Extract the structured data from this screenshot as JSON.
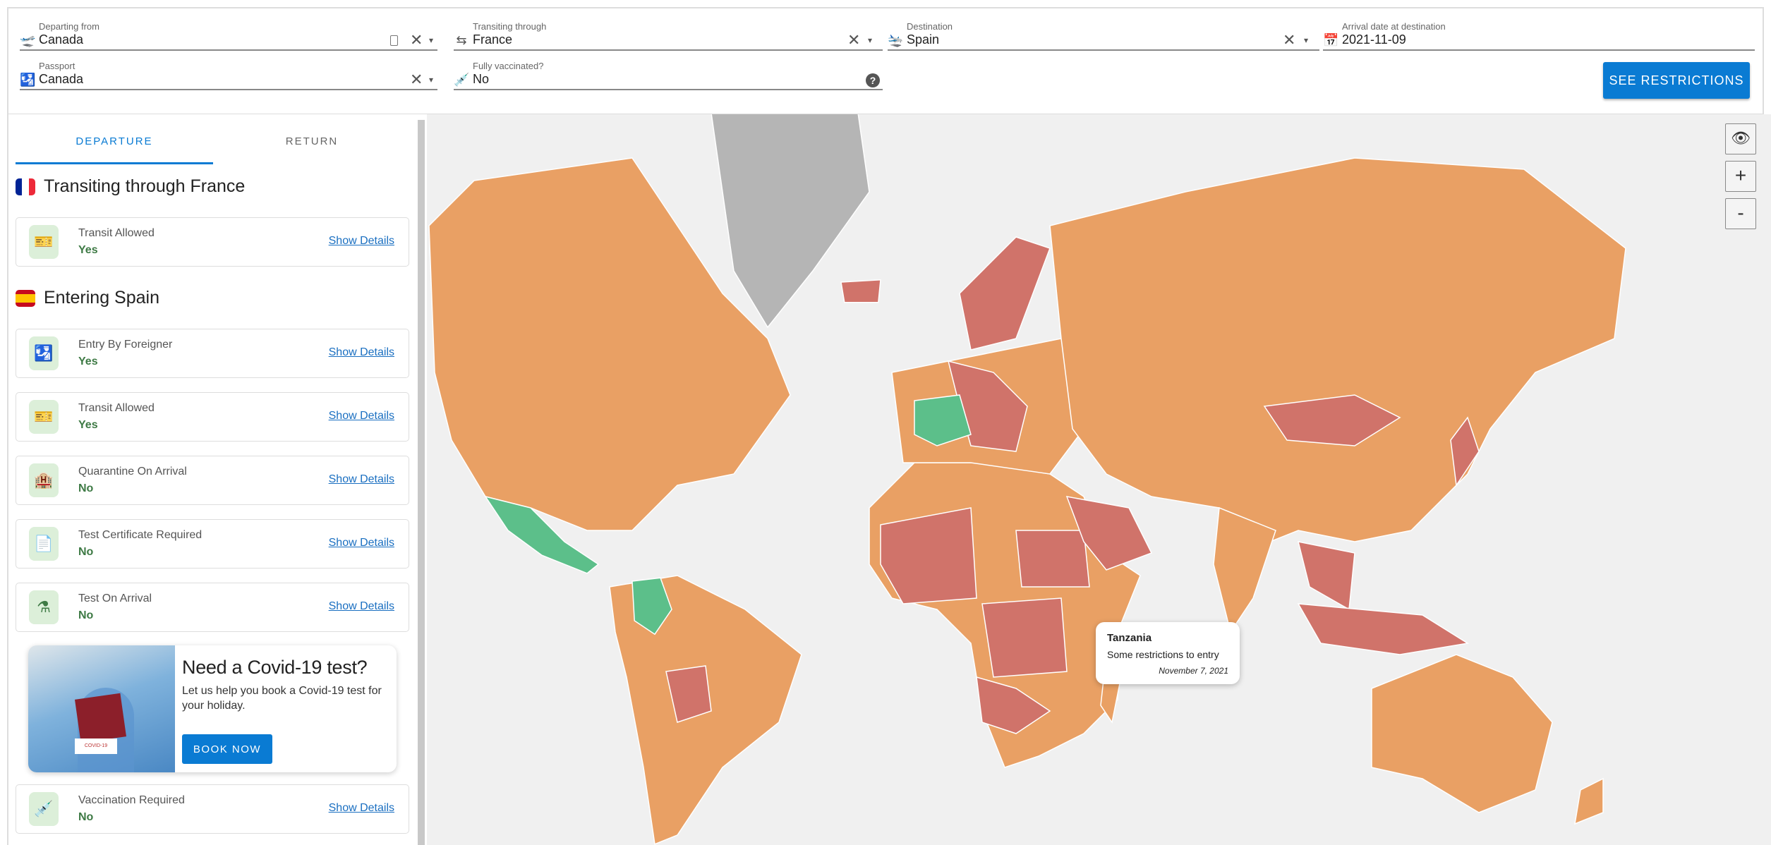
{
  "search": {
    "departing": {
      "label": "Departing from",
      "value": "Canada"
    },
    "transiting": {
      "label": "Transiting through",
      "value": "France"
    },
    "destination": {
      "label": "Destination",
      "value": "Spain"
    },
    "arrival": {
      "label": "Arrival date at destination",
      "value": "2021-11-09"
    },
    "passport": {
      "label": "Passport",
      "value": "Canada"
    },
    "vaccinated": {
      "label": "Fully vaccinated?",
      "value": "No"
    },
    "clear_icon": "✕",
    "dropdown_icon": "▾",
    "help_icon": "?",
    "submit": "SEE RESTRICTIONS"
  },
  "tabs": [
    {
      "label": "DEPARTURE",
      "active": true
    },
    {
      "label": "RETURN",
      "active": false
    }
  ],
  "sections": [
    {
      "title": "Transiting through France",
      "items": [
        {
          "title": "Transit Allowed",
          "value": "Yes",
          "link": "Show Details",
          "icon": "ticket-icon"
        }
      ]
    },
    {
      "title": "Entering Spain",
      "items": [
        {
          "title": "Entry By Foreigner",
          "value": "Yes",
          "link": "Show Details",
          "icon": "passport-icon"
        },
        {
          "title": "Transit Allowed",
          "value": "Yes",
          "link": "Show Details",
          "icon": "ticket-icon"
        },
        {
          "title": "Quarantine On Arrival",
          "value": "No",
          "link": "Show Details",
          "icon": "quarantine-icon"
        },
        {
          "title": "Test Certificate Required",
          "value": "No",
          "link": "Show Details",
          "icon": "certificate-icon"
        },
        {
          "title": "Test On Arrival",
          "value": "No",
          "link": "Show Details",
          "icon": "flask-icon"
        },
        {
          "title": "Vaccination Required",
          "value": "No",
          "link": "Show Details",
          "icon": "syringe-icon"
        }
      ]
    }
  ],
  "ad": {
    "title": "Need a Covid-19 test?",
    "text": "Let us help you book a Covid-19 test for your holiday.",
    "button": "BOOK NOW",
    "stamp": "COVID-19"
  },
  "map": {
    "controls": {
      "zoom_in": "+",
      "zoom_out": "-"
    },
    "colors": {
      "open": "#5cbf8a",
      "some_restrictions": "#e9a064",
      "restricted": "#d0736a",
      "no_data": "#b5b5b5",
      "background": "#f0f0f0"
    },
    "tooltip": {
      "country": "Tanzania",
      "status": "Some restrictions to entry",
      "date": "November 7, 2021"
    }
  },
  "colors": {
    "accent": "#0a7bd3",
    "positive": "#3e7a45"
  }
}
